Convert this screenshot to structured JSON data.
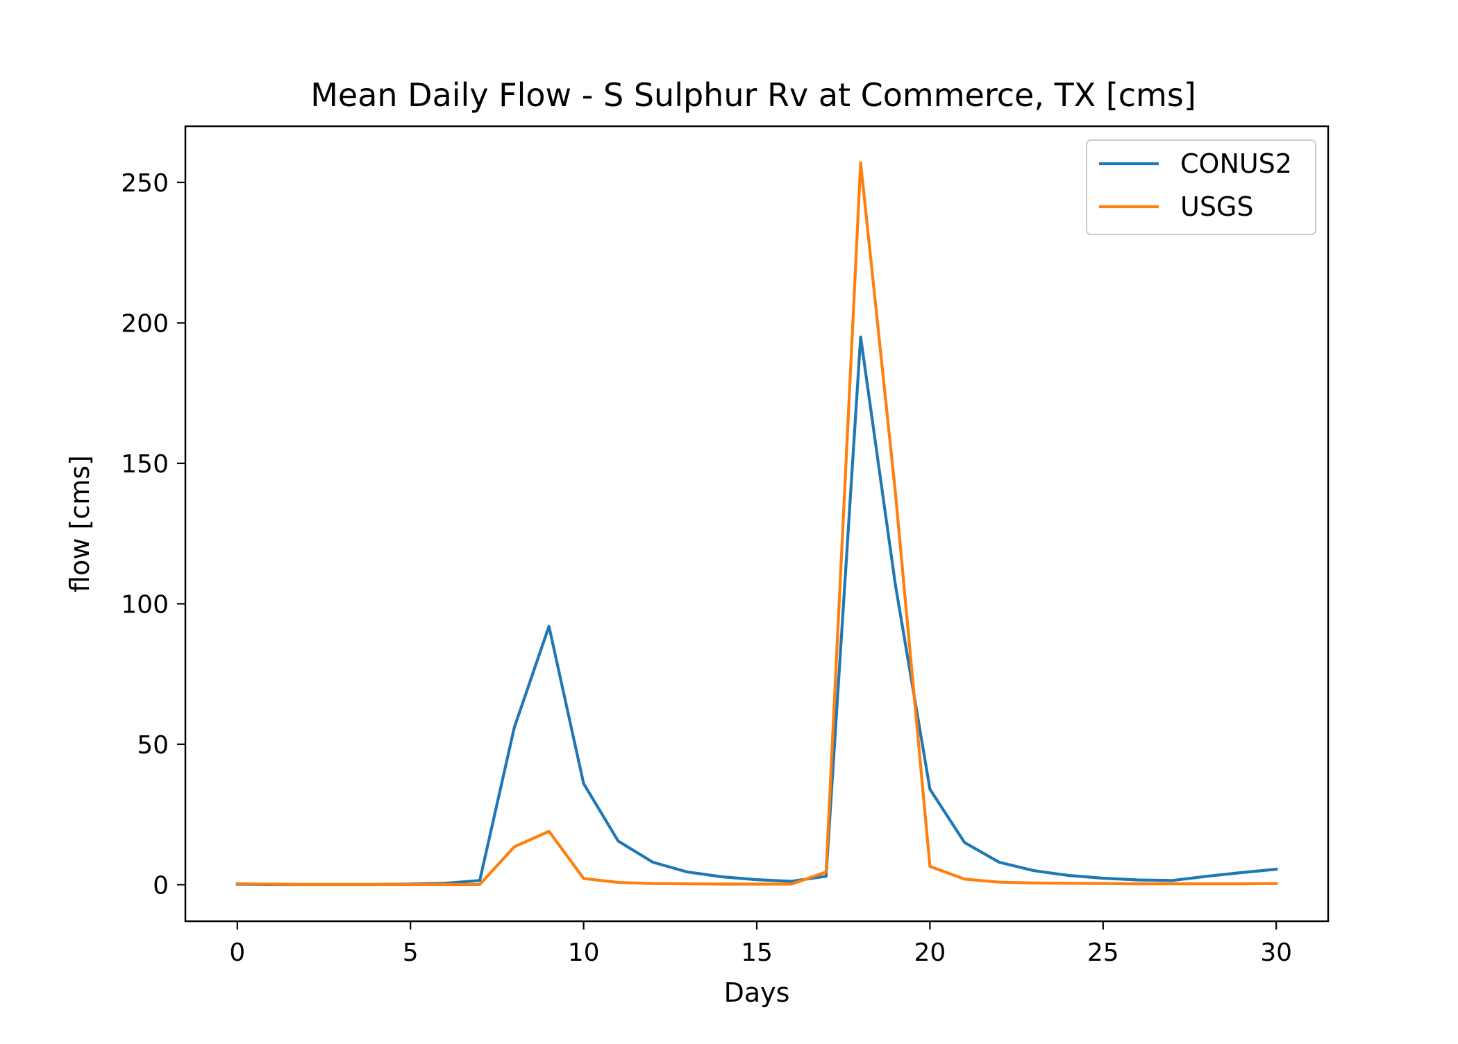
{
  "chart_data": {
    "type": "line",
    "title": "Mean Daily Flow - S Sulphur Rv at Commerce, TX [cms]",
    "xlabel": "Days",
    "ylabel": "flow [cms]",
    "xlim": [
      -1.5,
      31.5
    ],
    "ylim": [
      -13,
      270
    ],
    "xticks": [
      0,
      5,
      10,
      15,
      20,
      25,
      30
    ],
    "yticks": [
      0,
      50,
      100,
      150,
      200,
      250
    ],
    "grid": false,
    "legend_position": "top-right",
    "x": [
      0,
      1,
      2,
      3,
      4,
      5,
      6,
      7,
      8,
      9,
      10,
      11,
      12,
      13,
      14,
      15,
      16,
      17,
      18,
      19,
      20,
      21,
      22,
      23,
      24,
      25,
      26,
      27,
      28,
      29,
      30
    ],
    "series": [
      {
        "name": "CONUS2",
        "color": "#1f77b4",
        "values": [
          0.2,
          0.1,
          0.1,
          0.1,
          0.1,
          0.2,
          0.5,
          1.5,
          56,
          92,
          36,
          15.5,
          8,
          4.5,
          2.8,
          1.8,
          1.2,
          3,
          195,
          107,
          34,
          15,
          8,
          5,
          3.3,
          2.3,
          1.7,
          1.5,
          3,
          4.3,
          5.5
        ]
      },
      {
        "name": "USGS",
        "color": "#ff7f0e",
        "values": [
          0.3,
          0.2,
          0.1,
          0.1,
          0.1,
          0.1,
          0.1,
          0.1,
          13.5,
          19,
          2.2,
          0.8,
          0.4,
          0.3,
          0.2,
          0.2,
          0.2,
          4.5,
          257,
          140,
          6.5,
          2,
          0.9,
          0.6,
          0.5,
          0.4,
          0.3,
          0.3,
          0.3,
          0.3,
          0.4
        ]
      }
    ]
  }
}
